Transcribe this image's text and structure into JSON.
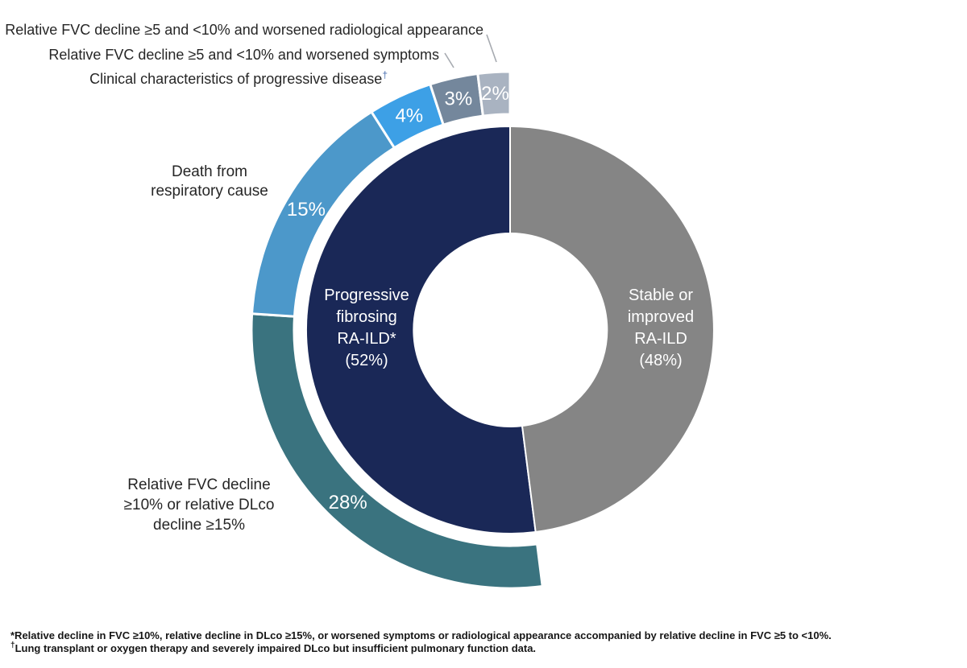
{
  "chart_data": {
    "type": "pie",
    "subtype": "nested-donut",
    "units": "percent of patients",
    "start_angle_deg": 172.8,
    "inner_ring": [
      {
        "name": "Progressive fibrosing RA-ILD*",
        "value": 52,
        "color": "#1a2857",
        "label_lines": [
          "Progressive",
          "fibrosing",
          "RA-ILD*",
          "(52%)"
        ]
      },
      {
        "name": "Stable or improved RA-ILD",
        "value": 48,
        "color": "#858585",
        "label_lines": [
          "Stable or",
          "improved",
          "RA-ILD",
          "(48%)"
        ]
      }
    ],
    "outer_ring": [
      {
        "name": "Relative FVC decline ≥10% or relative DLco decline ≥15%",
        "value": 28,
        "pct": "28%",
        "color": "#3a737f"
      },
      {
        "name": "Death from respiratory cause",
        "value": 15,
        "pct": "15%",
        "color": "#4c98ca"
      },
      {
        "name": "Clinical characteristics of progressive disease†",
        "value": 4,
        "pct": "4%",
        "color": "#3da0e6"
      },
      {
        "name": "Relative FVC decline ≥5 and <10% and worsened symptoms",
        "value": 3,
        "pct": "3%",
        "color": "#74879c"
      },
      {
        "name": "Relative FVC decline ≥5 and <10% and worsened radiological appearance",
        "value": 2,
        "pct": "2%",
        "color": "#a9b3c1"
      }
    ],
    "legend_position": "none",
    "grid": false
  },
  "callouts": {
    "radiological": "Relative FVC decline ≥5 and <10% and worsened radiological appearance",
    "symptoms": "Relative FVC decline ≥5 and <10% and worsened symptoms",
    "clinical": "Clinical characteristics of progressive disease",
    "clinical_marker": "†",
    "death_lines": [
      "Death from",
      "respiratory cause"
    ],
    "fvc_lines": [
      "Relative FVC decline",
      "≥10% or relative DLco",
      "decline ≥15%"
    ]
  },
  "footnotes": {
    "line1": "*Relative decline in FVC ≥10%, relative decline in DLco ≥15%, or worsened symptoms or radiological appearance accompanied by relative decline in FVC ≥5 to <10%.",
    "line2_marker": "†",
    "line2": "Lung transplant or oxygen therapy and severely impaired DLco but insufficient pulmonary function data."
  },
  "colors": {
    "background": "#ffffff",
    "label_text": "#262626",
    "center_text": "#ffffff",
    "leader_line": "#a6aab0",
    "dagger": "#4a70b0"
  }
}
